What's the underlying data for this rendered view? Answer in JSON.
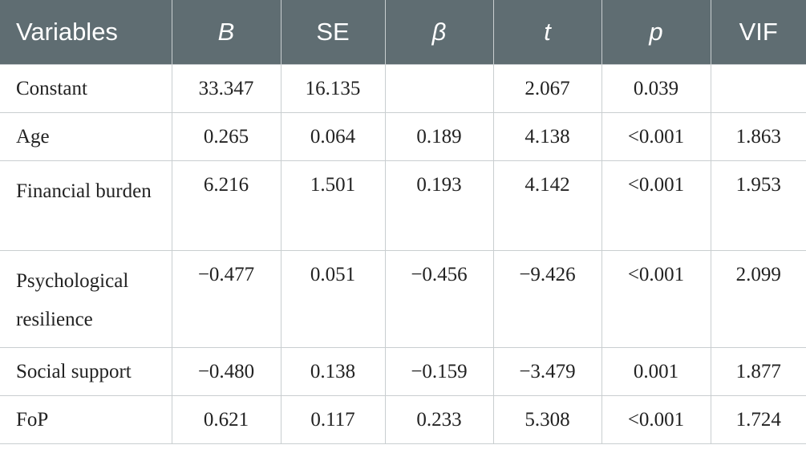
{
  "table": {
    "headers": [
      {
        "label": "Variables",
        "italic": false
      },
      {
        "label": "B",
        "italic": true
      },
      {
        "label": "SE",
        "italic": false
      },
      {
        "label": "β",
        "italic": true
      },
      {
        "label": "t",
        "italic": true
      },
      {
        "label": "p",
        "italic": true
      },
      {
        "label": "VIF",
        "italic": false
      }
    ],
    "rows": [
      {
        "variable": "Constant",
        "B": "33.347",
        "SE": "16.135",
        "beta": "",
        "t": "2.067",
        "p": "0.039",
        "VIF": ""
      },
      {
        "variable": "Age",
        "B": "0.265",
        "SE": "0.064",
        "beta": "0.189",
        "t": "4.138",
        "p": "<0.001",
        "VIF": "1.863"
      },
      {
        "variable": "Financial burden",
        "B": "6.216",
        "SE": "1.501",
        "beta": "0.193",
        "t": "4.142",
        "p": "<0.001",
        "VIF": "1.953"
      },
      {
        "variable": "Psychological resilience",
        "B": "−0.477",
        "SE": "0.051",
        "beta": "−0.456",
        "t": "−9.426",
        "p": "<0.001",
        "VIF": "2.099"
      },
      {
        "variable": "Social support",
        "B": "−0.480",
        "SE": "0.138",
        "beta": "−0.159",
        "t": "−3.479",
        "p": "0.001",
        "VIF": "1.877"
      },
      {
        "variable": "FoP",
        "B": "0.621",
        "SE": "0.117",
        "beta": "0.233",
        "t": "5.308",
        "p": "<0.001",
        "VIF": "1.724"
      }
    ]
  },
  "colors": {
    "header_bg": "#5f6d72",
    "header_text": "#ffffff",
    "grid": "#c9ced0"
  }
}
